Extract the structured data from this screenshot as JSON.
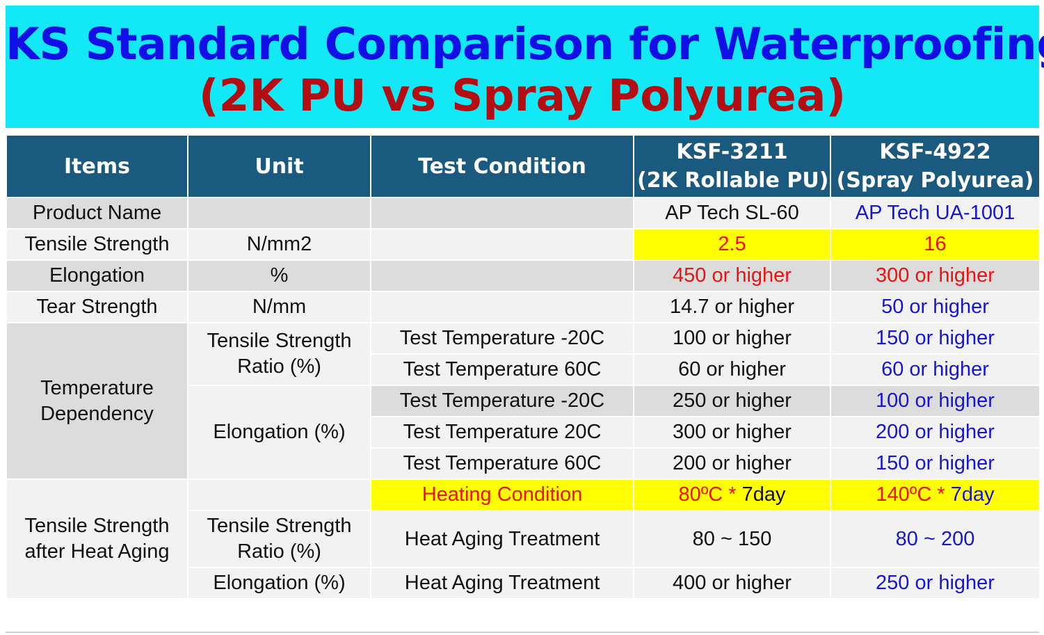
{
  "title": {
    "line1": "KS Standard Comparison for Waterproofing",
    "line2": "(2K PU vs Spray Polyurea)"
  },
  "headers": {
    "items": "Items",
    "unit": "Unit",
    "test_condition": "Test Condition",
    "ksf3211_line1": "KSF-3211",
    "ksf3211_line2": "(2K Rollable PU)",
    "ksf4922_line1": "KSF-4922",
    "ksf4922_line2": "(Spray Polyurea)"
  },
  "rows": {
    "product_name": {
      "item": "Product Name",
      "ksf3211": "AP Tech SL-60",
      "ksf4922": "AP Tech UA-1001"
    },
    "tensile_strength": {
      "item": "Tensile Strength",
      "unit": "N/mm2",
      "ksf3211": "2.5",
      "ksf4922": "16"
    },
    "elongation": {
      "item": "Elongation",
      "unit": "%",
      "ksf3211": "450 or higher",
      "ksf4922": "300 or higher"
    },
    "tear_strength": {
      "item": "Tear Strength",
      "unit": "N/mm",
      "ksf3211": "14.7 or higher",
      "ksf4922": "50 or higher"
    },
    "temperature_dependency": {
      "item_line1": "Temperature",
      "item_line2": "Dependency",
      "tensile_ratio_line1": "Tensile Strength",
      "tensile_ratio_line2": "Ratio (%)",
      "elongation_unit": "Elongation (%)",
      "rows": [
        {
          "condition": "Test Temperature -20C",
          "ksf3211": "100 or higher",
          "ksf4922": "150 or higher"
        },
        {
          "condition": "Test Temperature 60C",
          "ksf3211": "60 or higher",
          "ksf4922": "60 or higher"
        },
        {
          "condition": "Test Temperature  -20C",
          "ksf3211": "250 or higher",
          "ksf4922": "100 or higher"
        },
        {
          "condition": "Test Temperature 20C",
          "ksf3211": "300 or higher",
          "ksf4922": "200 or higher"
        },
        {
          "condition": "Test Temperature 60C",
          "ksf3211": "200 or higher",
          "ksf4922": "150 or higher"
        }
      ]
    },
    "heat_aging": {
      "item_line1": "Tensile Strength",
      "item_line2": "after Heat Aging",
      "heating_condition": "Heating Condition",
      "ksf3211_heat": "80ºC *",
      "ksf3211_days": " 7day",
      "ksf4922_heat": "140ºC *",
      "ksf4922_days": " 7day",
      "tensile_ratio_line1": "Tensile Strength",
      "tensile_ratio_line2": "Ratio (%)",
      "treatment1": "Heat Aging Treatment",
      "ksf3211_ratio": "80 ~ 150",
      "ksf4922_ratio": "80 ~ 200",
      "elongation_unit": "Elongation (%)",
      "treatment2": "Heat Aging Treatment",
      "ksf3211_elong": "400 or higher",
      "ksf4922_elong": "250 or higher"
    }
  },
  "colors": {
    "banner": "#13e8f6",
    "title_line1": "#1010e6",
    "title_line2": "#b40d12",
    "header": "#1a5a7e",
    "highlight": "#ffff00",
    "red": "#ee1111",
    "blue": "#1515d8"
  }
}
